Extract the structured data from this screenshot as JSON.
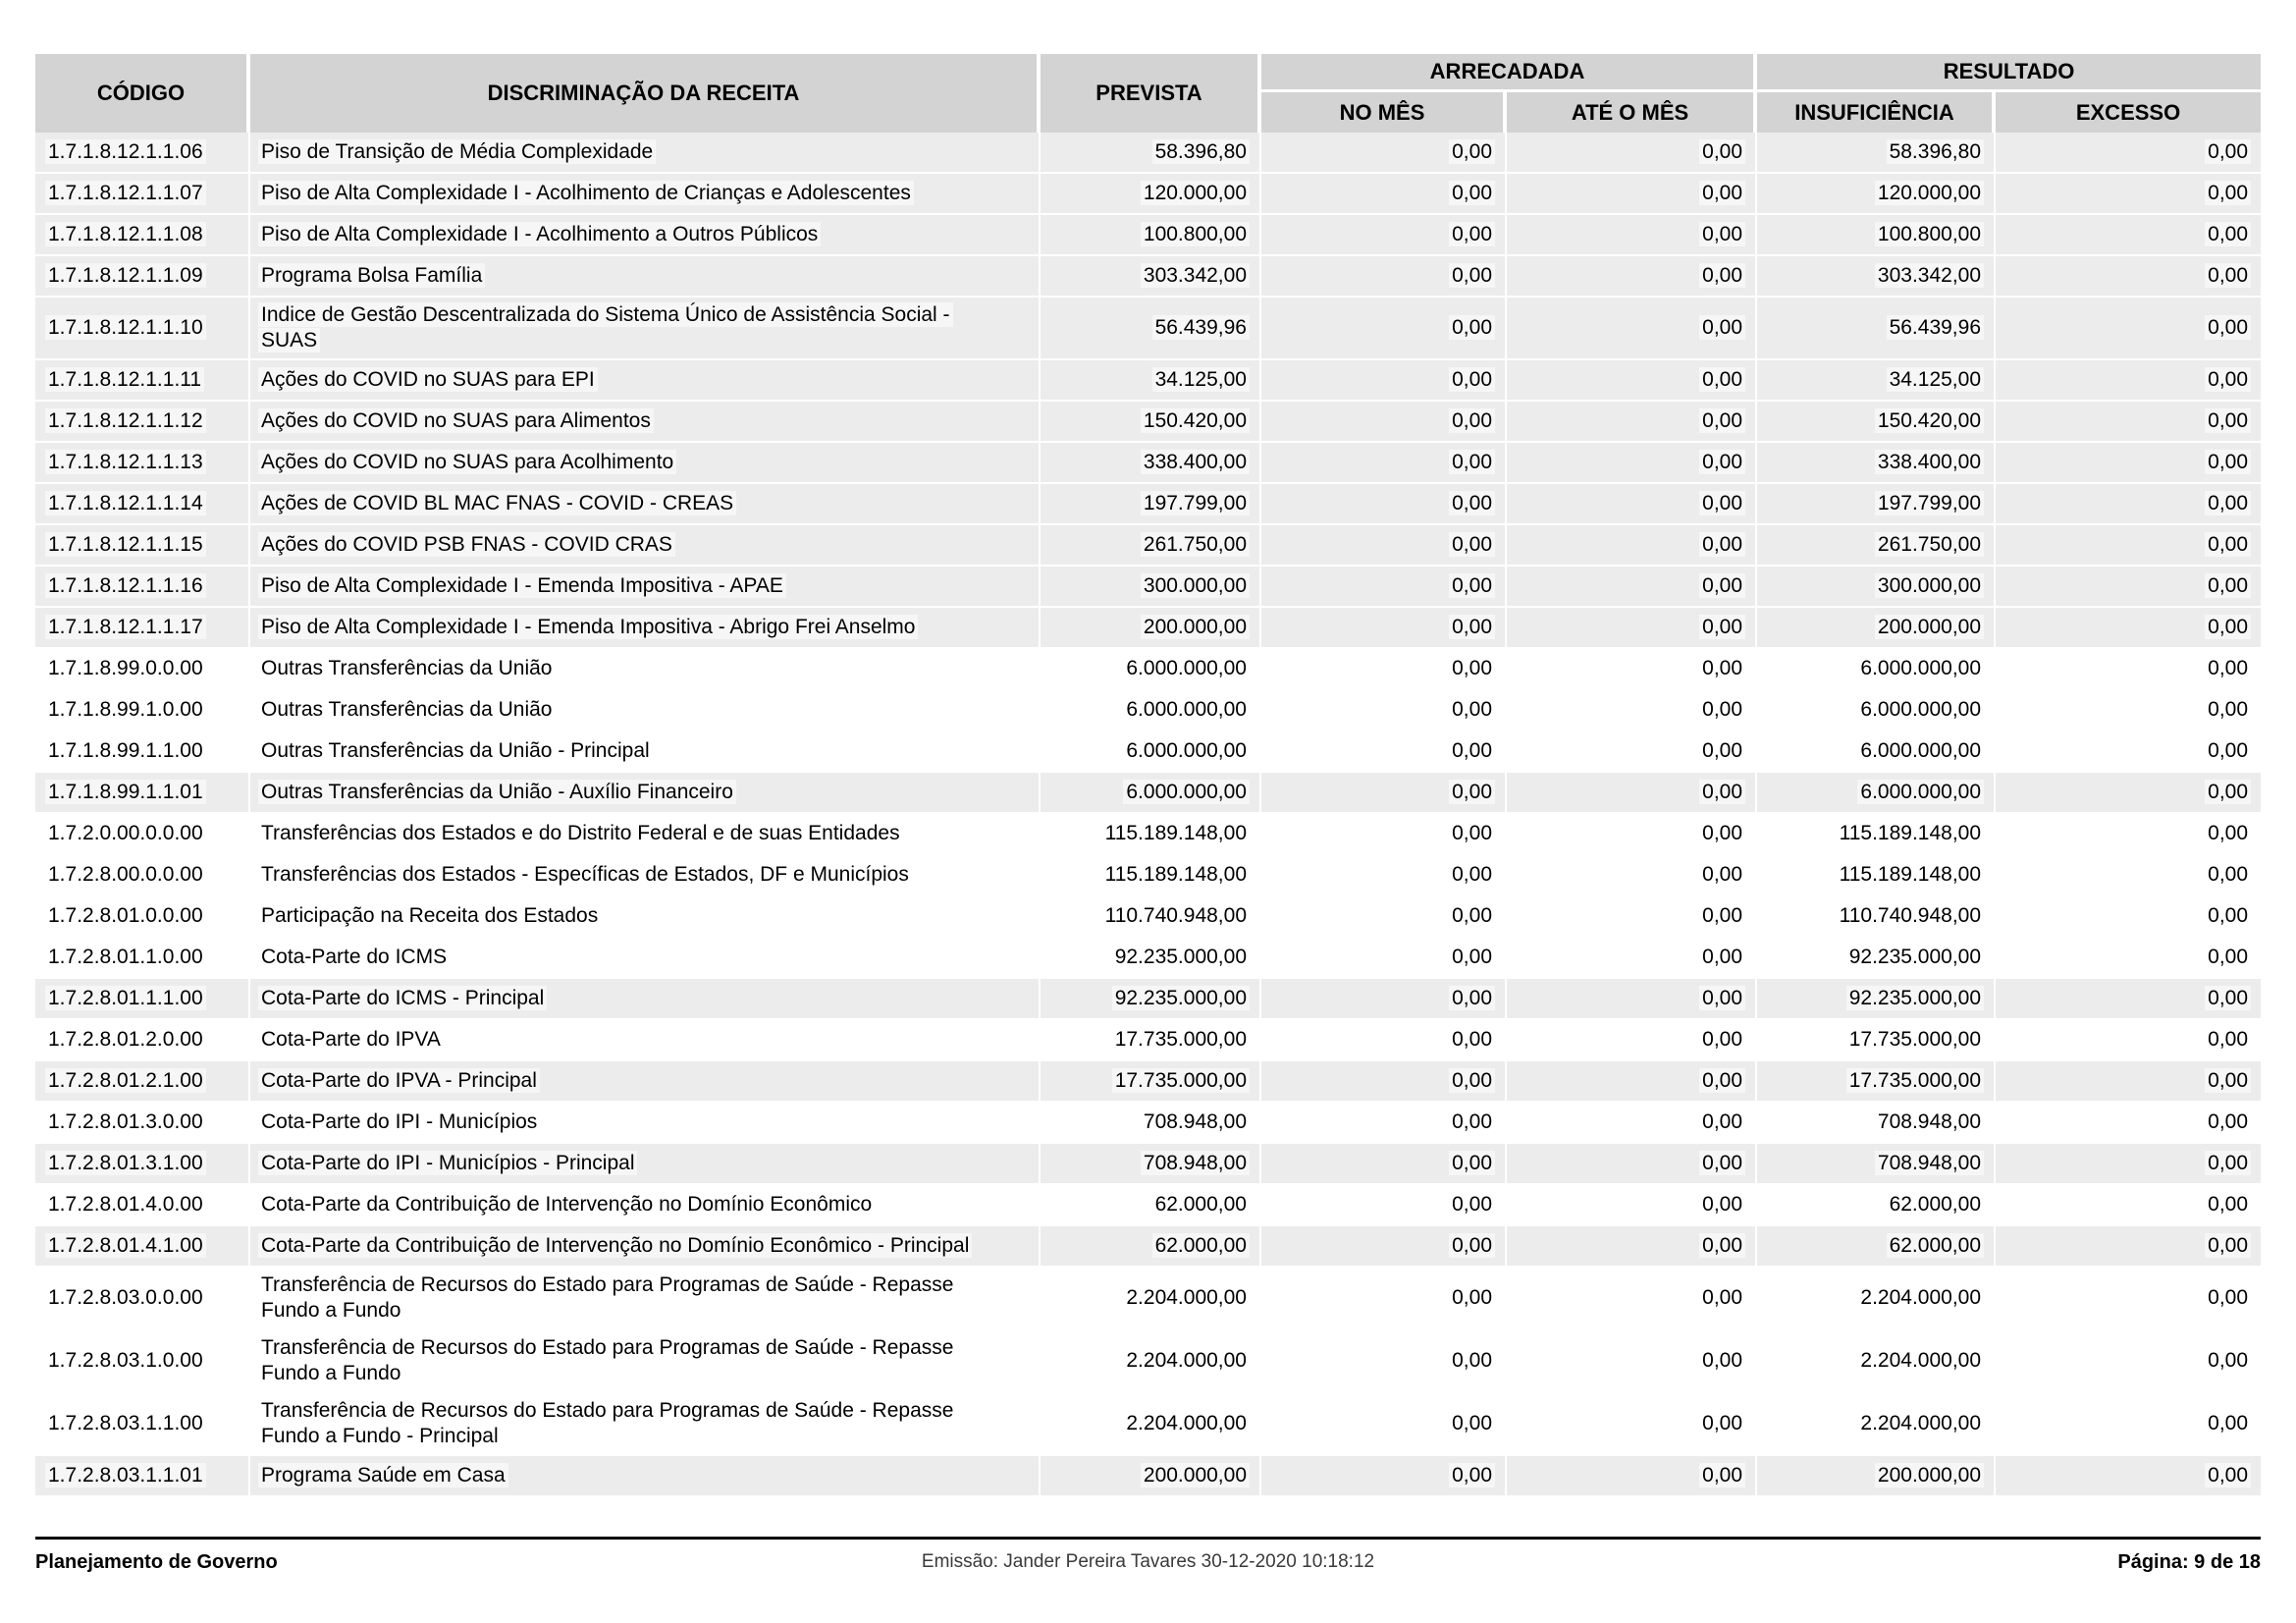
{
  "report": {
    "columns": {
      "codigo": "CÓDIGO",
      "discriminacao": "DISCRIMINAÇÃO DA RECEITA",
      "prevista": "PREVISTA",
      "arrecadada": "ARRECADADA",
      "no_mes": "NO MÊS",
      "ate_o_mes": "ATÉ O MÊS",
      "resultado": "RESULTADO",
      "insuficiencia": "INSUFICIÊNCIA",
      "excesso": "EXCESSO"
    }
  },
  "rows": [
    {
      "code": "1.7.1.8.12.1.1.06",
      "desc": "Piso de Transição de Média Complexidade",
      "prevista": "58.396,80",
      "no_mes": "0,00",
      "ate_o_mes": "0,00",
      "insuficiencia": "58.396,80",
      "excesso": "0,00",
      "shaded": true
    },
    {
      "code": "1.7.1.8.12.1.1.07",
      "desc": "Piso de Alta Complexidade I - Acolhimento de Crianças e Adolescentes",
      "prevista": "120.000,00",
      "no_mes": "0,00",
      "ate_o_mes": "0,00",
      "insuficiencia": "120.000,00",
      "excesso": "0,00",
      "shaded": true
    },
    {
      "code": "1.7.1.8.12.1.1.08",
      "desc": "Piso de Alta Complexidade I - Acolhimento a Outros Públicos",
      "prevista": "100.800,00",
      "no_mes": "0,00",
      "ate_o_mes": "0,00",
      "insuficiencia": "100.800,00",
      "excesso": "0,00",
      "shaded": true
    },
    {
      "code": "1.7.1.8.12.1.1.09",
      "desc": "Programa Bolsa Família",
      "prevista": "303.342,00",
      "no_mes": "0,00",
      "ate_o_mes": "0,00",
      "insuficiencia": "303.342,00",
      "excesso": "0,00",
      "shaded": true
    },
    {
      "code": "1.7.1.8.12.1.1.10",
      "desc": "Indice de Gestão Descentralizada do Sistema Único de Assistência Social -\nSUAS",
      "prevista": "56.439,96",
      "no_mes": "0,00",
      "ate_o_mes": "0,00",
      "insuficiencia": "56.439,96",
      "excesso": "0,00",
      "shaded": true
    },
    {
      "code": "1.7.1.8.12.1.1.11",
      "desc": "Ações do COVID no SUAS para EPI",
      "prevista": "34.125,00",
      "no_mes": "0,00",
      "ate_o_mes": "0,00",
      "insuficiencia": "34.125,00",
      "excesso": "0,00",
      "shaded": true
    },
    {
      "code": "1.7.1.8.12.1.1.12",
      "desc": "Ações do COVID no SUAS para Alimentos",
      "prevista": "150.420,00",
      "no_mes": "0,00",
      "ate_o_mes": "0,00",
      "insuficiencia": "150.420,00",
      "excesso": "0,00",
      "shaded": true
    },
    {
      "code": "1.7.1.8.12.1.1.13",
      "desc": "Ações do COVID no SUAS para Acolhimento",
      "prevista": "338.400,00",
      "no_mes": "0,00",
      "ate_o_mes": "0,00",
      "insuficiencia": "338.400,00",
      "excesso": "0,00",
      "shaded": true
    },
    {
      "code": "1.7.1.8.12.1.1.14",
      "desc": "Ações de COVID BL MAC FNAS - COVID - CREAS",
      "prevista": "197.799,00",
      "no_mes": "0,00",
      "ate_o_mes": "0,00",
      "insuficiencia": "197.799,00",
      "excesso": "0,00",
      "shaded": true
    },
    {
      "code": "1.7.1.8.12.1.1.15",
      "desc": "Ações do COVID PSB FNAS - COVID CRAS",
      "prevista": "261.750,00",
      "no_mes": "0,00",
      "ate_o_mes": "0,00",
      "insuficiencia": "261.750,00",
      "excesso": "0,00",
      "shaded": true
    },
    {
      "code": "1.7.1.8.12.1.1.16",
      "desc": "Piso de Alta Complexidade I - Emenda Impositiva - APAE",
      "prevista": "300.000,00",
      "no_mes": "0,00",
      "ate_o_mes": "0,00",
      "insuficiencia": "300.000,00",
      "excesso": "0,00",
      "shaded": true
    },
    {
      "code": "1.7.1.8.12.1.1.17",
      "desc": "Piso de Alta Complexidade I - Emenda Impositiva - Abrigo Frei Anselmo",
      "prevista": "200.000,00",
      "no_mes": "0,00",
      "ate_o_mes": "0,00",
      "insuficiencia": "200.000,00",
      "excesso": "0,00",
      "shaded": true
    },
    {
      "code": "1.7.1.8.99.0.0.00",
      "desc": "Outras Transferências da União",
      "prevista": "6.000.000,00",
      "no_mes": "0,00",
      "ate_o_mes": "0,00",
      "insuficiencia": "6.000.000,00",
      "excesso": "0,00",
      "shaded": false
    },
    {
      "code": "1.7.1.8.99.1.0.00",
      "desc": "Outras Transferências da União",
      "prevista": "6.000.000,00",
      "no_mes": "0,00",
      "ate_o_mes": "0,00",
      "insuficiencia": "6.000.000,00",
      "excesso": "0,00",
      "shaded": false
    },
    {
      "code": "1.7.1.8.99.1.1.00",
      "desc": "Outras Transferências da União - Principal",
      "prevista": "6.000.000,00",
      "no_mes": "0,00",
      "ate_o_mes": "0,00",
      "insuficiencia": "6.000.000,00",
      "excesso": "0,00",
      "shaded": false
    },
    {
      "code": "1.7.1.8.99.1.1.01",
      "desc": "Outras Transferências da União - Auxílio Financeiro",
      "prevista": "6.000.000,00",
      "no_mes": "0,00",
      "ate_o_mes": "0,00",
      "insuficiencia": "6.000.000,00",
      "excesso": "0,00",
      "shaded": true
    },
    {
      "code": "1.7.2.0.00.0.0.00",
      "desc": "Transferências dos Estados e do Distrito Federal e de suas Entidades",
      "prevista": "115.189.148,00",
      "no_mes": "0,00",
      "ate_o_mes": "0,00",
      "insuficiencia": "115.189.148,00",
      "excesso": "0,00",
      "shaded": false
    },
    {
      "code": "1.7.2.8.00.0.0.00",
      "desc": "Transferências dos Estados - Específicas de Estados, DF e Municípios",
      "prevista": "115.189.148,00",
      "no_mes": "0,00",
      "ate_o_mes": "0,00",
      "insuficiencia": "115.189.148,00",
      "excesso": "0,00",
      "shaded": false
    },
    {
      "code": "1.7.2.8.01.0.0.00",
      "desc": "Participação na Receita dos Estados",
      "prevista": "110.740.948,00",
      "no_mes": "0,00",
      "ate_o_mes": "0,00",
      "insuficiencia": "110.740.948,00",
      "excesso": "0,00",
      "shaded": false
    },
    {
      "code": "1.7.2.8.01.1.0.00",
      "desc": "Cota-Parte do ICMS",
      "prevista": "92.235.000,00",
      "no_mes": "0,00",
      "ate_o_mes": "0,00",
      "insuficiencia": "92.235.000,00",
      "excesso": "0,00",
      "shaded": false
    },
    {
      "code": "1.7.2.8.01.1.1.00",
      "desc": "Cota-Parte do ICMS - Principal",
      "prevista": "92.235.000,00",
      "no_mes": "0,00",
      "ate_o_mes": "0,00",
      "insuficiencia": "92.235.000,00",
      "excesso": "0,00",
      "shaded": true
    },
    {
      "code": "1.7.2.8.01.2.0.00",
      "desc": "Cota-Parte do IPVA",
      "prevista": "17.735.000,00",
      "no_mes": "0,00",
      "ate_o_mes": "0,00",
      "insuficiencia": "17.735.000,00",
      "excesso": "0,00",
      "shaded": false
    },
    {
      "code": "1.7.2.8.01.2.1.00",
      "desc": "Cota-Parte do IPVA - Principal",
      "prevista": "17.735.000,00",
      "no_mes": "0,00",
      "ate_o_mes": "0,00",
      "insuficiencia": "17.735.000,00",
      "excesso": "0,00",
      "shaded": true
    },
    {
      "code": "1.7.2.8.01.3.0.00",
      "desc": "Cota-Parte do IPI - Municípios",
      "prevista": "708.948,00",
      "no_mes": "0,00",
      "ate_o_mes": "0,00",
      "insuficiencia": "708.948,00",
      "excesso": "0,00",
      "shaded": false
    },
    {
      "code": "1.7.2.8.01.3.1.00",
      "desc": "Cota-Parte do IPI - Municípios - Principal",
      "prevista": "708.948,00",
      "no_mes": "0,00",
      "ate_o_mes": "0,00",
      "insuficiencia": "708.948,00",
      "excesso": "0,00",
      "shaded": true
    },
    {
      "code": "1.7.2.8.01.4.0.00",
      "desc": "Cota-Parte da Contribuição de Intervenção no Domínio Econômico",
      "prevista": "62.000,00",
      "no_mes": "0,00",
      "ate_o_mes": "0,00",
      "insuficiencia": "62.000,00",
      "excesso": "0,00",
      "shaded": false
    },
    {
      "code": "1.7.2.8.01.4.1.00",
      "desc": "Cota-Parte da Contribuição de Intervenção no Domínio Econômico - Principal",
      "prevista": "62.000,00",
      "no_mes": "0,00",
      "ate_o_mes": "0,00",
      "insuficiencia": "62.000,00",
      "excesso": "0,00",
      "shaded": true
    },
    {
      "code": "1.7.2.8.03.0.0.00",
      "desc": "Transferência de Recursos do Estado para Programas de Saúde - Repasse\nFundo a Fundo",
      "prevista": "2.204.000,00",
      "no_mes": "0,00",
      "ate_o_mes": "0,00",
      "insuficiencia": "2.204.000,00",
      "excesso": "0,00",
      "shaded": false
    },
    {
      "code": "1.7.2.8.03.1.0.00",
      "desc": "Transferência de Recursos do Estado para Programas de Saúde - Repasse\nFundo a Fundo",
      "prevista": "2.204.000,00",
      "no_mes": "0,00",
      "ate_o_mes": "0,00",
      "insuficiencia": "2.204.000,00",
      "excesso": "0,00",
      "shaded": false
    },
    {
      "code": "1.7.2.8.03.1.1.00",
      "desc": "Transferência de Recursos do Estado para Programas de Saúde - Repasse\nFundo a Fundo - Principal",
      "prevista": "2.204.000,00",
      "no_mes": "0,00",
      "ate_o_mes": "0,00",
      "insuficiencia": "2.204.000,00",
      "excesso": "0,00",
      "shaded": false
    },
    {
      "code": "1.7.2.8.03.1.1.01",
      "desc": "Programa Saúde em Casa",
      "prevista": "200.000,00",
      "no_mes": "0,00",
      "ate_o_mes": "0,00",
      "insuficiencia": "200.000,00",
      "excesso": "0,00",
      "shaded": true
    }
  ],
  "footer": {
    "left": "Planejamento de Governo",
    "center": "Emissão: Jander Pereira Tavares 30-12-2020 10:18:12",
    "right": "Página: 9 de 18"
  },
  "colors": {
    "header_bg": "#d3d3d3",
    "shaded_row": "#ececec",
    "separator": "#ffffff",
    "footer_rule": "#000000"
  }
}
